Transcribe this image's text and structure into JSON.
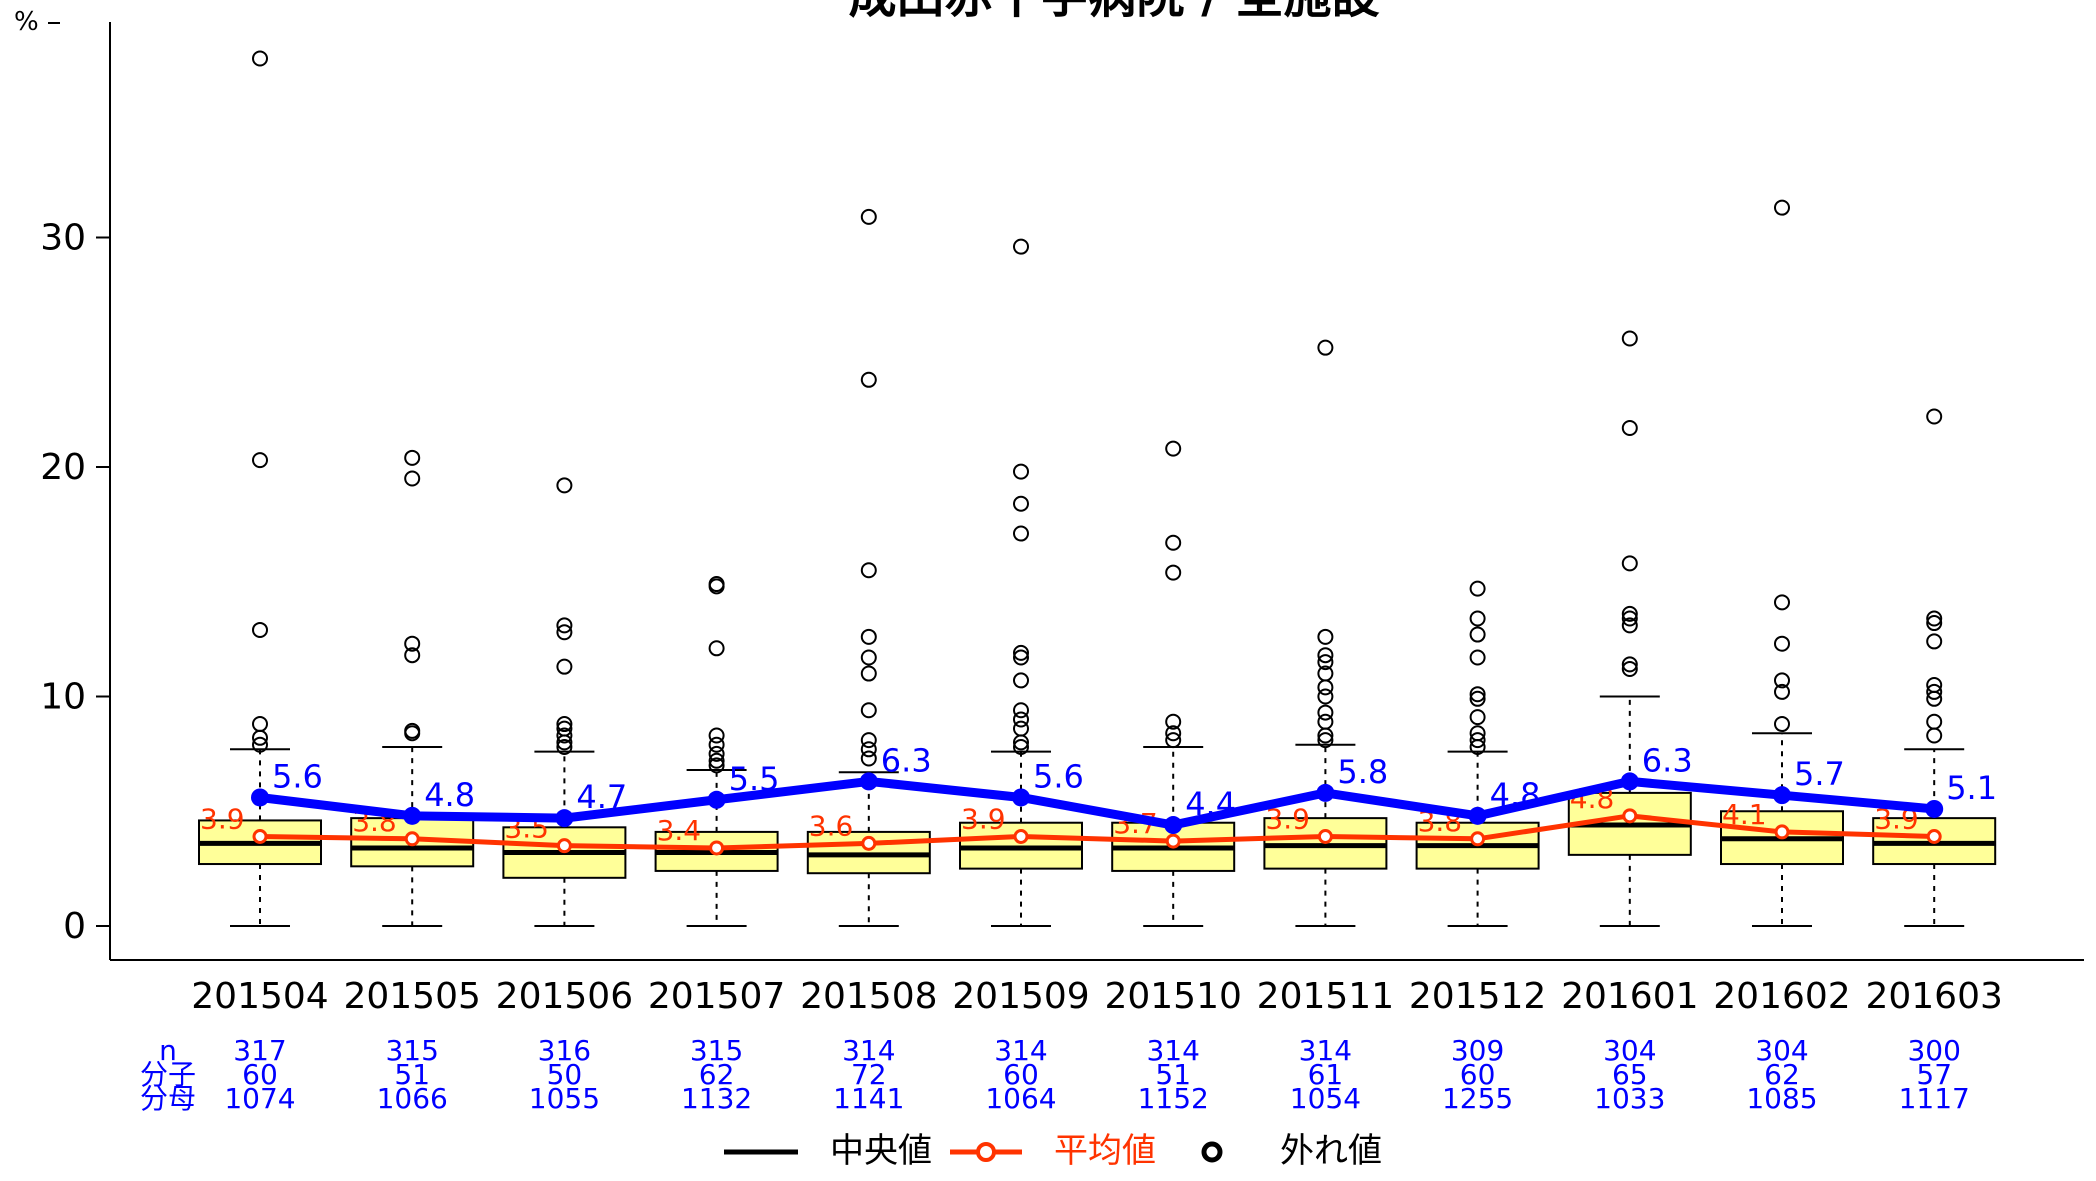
{
  "chart_data": {
    "type": "box",
    "title": "成田赤十字病院 / 全施設",
    "ylabel": "%",
    "ylim": [
      -1.5,
      39.5
    ],
    "yticks": [
      0,
      10,
      20,
      30
    ],
    "categories": [
      "201504",
      "201505",
      "201506",
      "201507",
      "201508",
      "201509",
      "201510",
      "201511",
      "201512",
      "201601",
      "201602",
      "201603"
    ],
    "boxes": [
      {
        "q1": 2.7,
        "median": 3.6,
        "q3": 4.6,
        "whisker_low": 0,
        "whisker_high": 7.7
      },
      {
        "q1": 2.6,
        "median": 3.4,
        "q3": 4.7,
        "whisker_low": 0,
        "whisker_high": 7.8
      },
      {
        "q1": 2.1,
        "median": 3.2,
        "q3": 4.3,
        "whisker_low": 0,
        "whisker_high": 7.6
      },
      {
        "q1": 2.4,
        "median": 3.2,
        "q3": 4.1,
        "whisker_low": 0,
        "whisker_high": 6.8
      },
      {
        "q1": 2.3,
        "median": 3.1,
        "q3": 4.1,
        "whisker_low": 0,
        "whisker_high": 6.7
      },
      {
        "q1": 2.5,
        "median": 3.4,
        "q3": 4.5,
        "whisker_low": 0,
        "whisker_high": 7.6
      },
      {
        "q1": 2.4,
        "median": 3.4,
        "q3": 4.5,
        "whisker_low": 0,
        "whisker_high": 7.8
      },
      {
        "q1": 2.5,
        "median": 3.5,
        "q3": 4.7,
        "whisker_low": 0,
        "whisker_high": 7.9
      },
      {
        "q1": 2.5,
        "median": 3.5,
        "q3": 4.5,
        "whisker_low": 0,
        "whisker_high": 7.6
      },
      {
        "q1": 3.1,
        "median": 4.4,
        "q3": 5.8,
        "whisker_low": 0,
        "whisker_high": 10.0
      },
      {
        "q1": 2.7,
        "median": 3.8,
        "q3": 5.0,
        "whisker_low": 0,
        "whisker_high": 8.4
      },
      {
        "q1": 2.7,
        "median": 3.6,
        "q3": 4.7,
        "whisker_low": 0,
        "whisker_high": 7.7
      }
    ],
    "outliers": [
      [
        37.8,
        20.3,
        12.9,
        8.8,
        8.2,
        7.9
      ],
      [
        20.4,
        19.5,
        12.3,
        11.8,
        8.5,
        8.4
      ],
      [
        19.2,
        13.1,
        12.8,
        11.3,
        8.8,
        8.6,
        8.3,
        8.0,
        7.8
      ],
      [
        14.9,
        14.8,
        12.1,
        8.3,
        7.9,
        7.5,
        7.2,
        7.0
      ],
      [
        30.9,
        23.8,
        15.5,
        12.6,
        11.7,
        11.0,
        9.4,
        8.1,
        7.7,
        7.3
      ],
      [
        29.6,
        19.8,
        18.4,
        17.1,
        11.9,
        11.7,
        10.7,
        9.4,
        9.0,
        8.6,
        8.0,
        7.8
      ],
      [
        20.8,
        16.7,
        15.4,
        8.9,
        8.4,
        8.1
      ],
      [
        25.2,
        12.6,
        11.8,
        11.5,
        11.0,
        10.4,
        10.0,
        9.3,
        8.9,
        8.3,
        8.1
      ],
      [
        14.7,
        13.4,
        12.7,
        11.7,
        10.1,
        9.9,
        9.1,
        8.4,
        8.1,
        7.8
      ],
      [
        25.6,
        21.7,
        15.8,
        13.6,
        13.4,
        13.1,
        11.4,
        11.2
      ],
      [
        31.3,
        14.1,
        12.3,
        10.7,
        10.2,
        8.8
      ],
      [
        22.2,
        13.4,
        13.2,
        12.4,
        10.5,
        10.2,
        9.9,
        8.9,
        8.3
      ]
    ],
    "series": [
      {
        "name": "施設値",
        "color": "#0000ff",
        "values": [
          5.6,
          4.8,
          4.7,
          5.5,
          6.3,
          5.6,
          4.4,
          5.8,
          4.8,
          6.3,
          5.7,
          5.1
        ],
        "labels": [
          "5.6",
          "4.8",
          "4.7",
          "5.5",
          "6.3",
          "5.6",
          "4.4",
          "5.8",
          "4.8",
          "6.3",
          "5.7",
          "5.1"
        ]
      },
      {
        "name": "平均値",
        "color": "#ff3300",
        "values": [
          3.9,
          3.8,
          3.5,
          3.4,
          3.6,
          3.9,
          3.7,
          3.9,
          3.8,
          4.8,
          4.1,
          3.9
        ],
        "labels": [
          "3.9",
          "3.8",
          "3.5",
          "3.4",
          "3.6",
          "3.9",
          "3.7",
          "3.9",
          "3.8",
          "4.8",
          "4.1",
          "3.9"
        ]
      }
    ],
    "table": {
      "row_labels": [
        "n",
        "分子",
        "分母"
      ],
      "rows": [
        [
          "317",
          "315",
          "316",
          "315",
          "314",
          "314",
          "314",
          "314",
          "309",
          "304",
          "304",
          "300"
        ],
        [
          "60",
          "51",
          "50",
          "62",
          "72",
          "60",
          "51",
          "61",
          "60",
          "65",
          "62",
          "57"
        ],
        [
          "1074",
          "1066",
          "1055",
          "1132",
          "1141",
          "1064",
          "1152",
          "1054",
          "1255",
          "1033",
          "1085",
          "1117"
        ]
      ]
    },
    "legend": {
      "position": "bottom",
      "items": [
        {
          "label": "中央値",
          "color": "#000000",
          "symbol": "line"
        },
        {
          "label": "平均値",
          "color": "#ff3300",
          "symbol": "line-circle"
        },
        {
          "label": "外れ値",
          "color": "#000000",
          "symbol": "circle"
        }
      ]
    },
    "colors": {
      "box_fill": "#ffff99",
      "axis": "#000000",
      "table_text": "#0000ff"
    },
    "grid": false
  }
}
